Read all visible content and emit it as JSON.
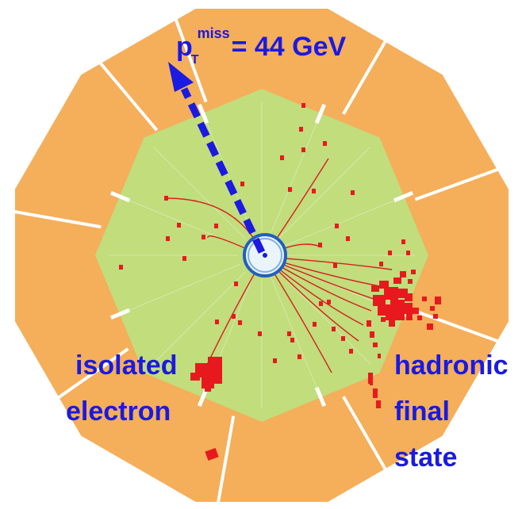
{
  "labels": {
    "ptmiss_p": "p",
    "ptmiss_sub": "T",
    "ptmiss_sup": "miss",
    "ptmiss_value": "= 44 GeV",
    "isolated": "isolated",
    "electron": "electron",
    "hadronic": "hadronic",
    "final": "final",
    "state": "state"
  },
  "colors": {
    "outer_calorimeter": "#f5ae5a",
    "inner_calorimeter": "#c1dd7c",
    "energy_deposit": "#e8191e",
    "track": "#d41f1f",
    "missing_pt_arrow": "#1a1ae0",
    "beam_pipe": "#2060c0",
    "module_gap": "#ffffff"
  },
  "icons": {
    "missing_pt_arrow": "dashed-arrow-icon",
    "beam_pipe": "ring-icon"
  },
  "measurements": {
    "missing_pt_gev": 44
  }
}
